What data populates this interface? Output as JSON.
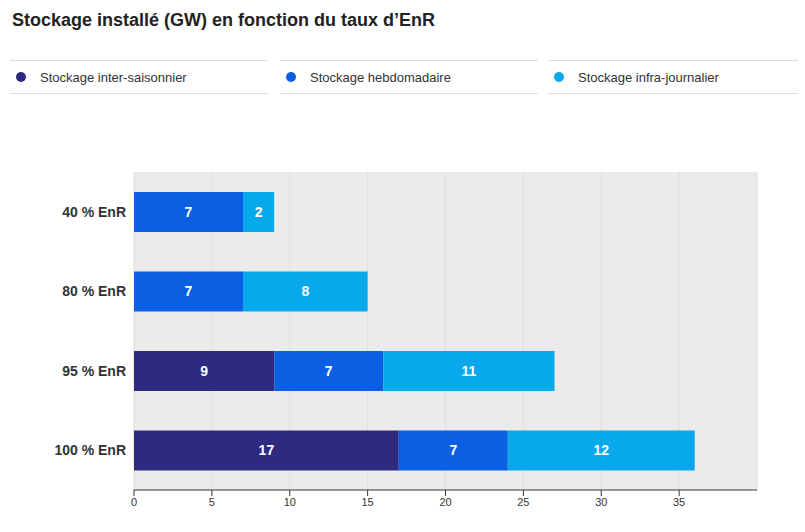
{
  "chart_data": {
    "type": "bar",
    "title": "Stockage installé (GW) en fonction du taux d’EnR",
    "orientation": "horizontal",
    "stacked": true,
    "categories": [
      "40 % EnR",
      "80 % EnR",
      "95 % EnR",
      "100 % EnR"
    ],
    "series": [
      {
        "name": "Stockage inter-saisonnier",
        "color": "#2e2a80",
        "values": [
          null,
          null,
          9,
          17
        ]
      },
      {
        "name": "Stockage hebdomadaire",
        "color": "#0b5fe3",
        "values": [
          7,
          7,
          7,
          7
        ]
      },
      {
        "name": "Stockage infra-journalier",
        "color": "#08a9ec",
        "values": [
          2,
          8,
          11,
          12
        ]
      }
    ],
    "xlim": [
      0,
      40
    ],
    "xticks": [
      0,
      5,
      10,
      15,
      20,
      25,
      30,
      35
    ],
    "grid": true,
    "legend": "top",
    "data_labels": true
  }
}
